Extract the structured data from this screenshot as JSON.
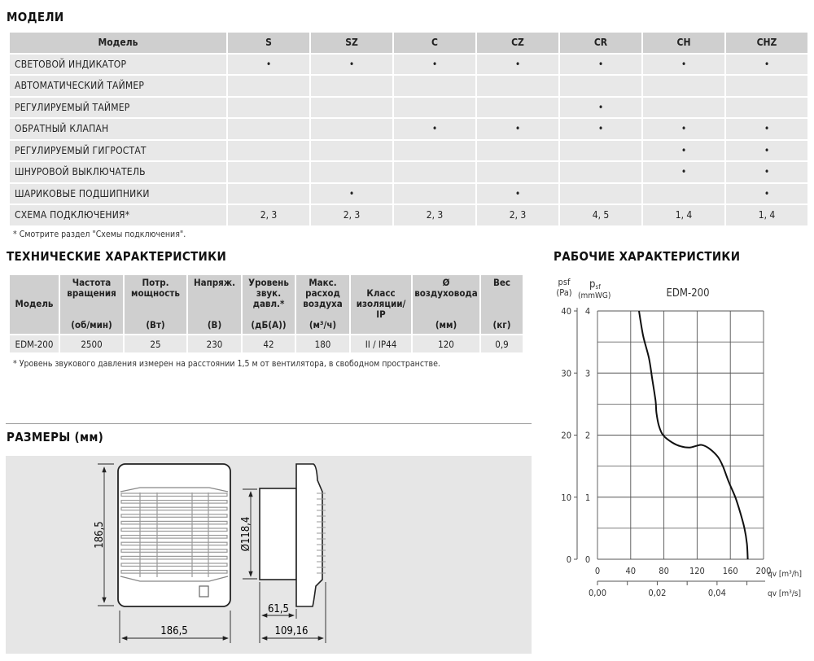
{
  "models": {
    "title": "МОДЕЛИ",
    "header": [
      "Модель",
      "S",
      "SZ",
      "C",
      "CZ",
      "CR",
      "CH",
      "CHZ"
    ],
    "rows": [
      {
        "label": "СВЕТОВОЙ ИНДИКАТОР",
        "cells": [
          "•",
          "•",
          "•",
          "•",
          "•",
          "•",
          "•"
        ]
      },
      {
        "label": "АВТОМАТИЧЕСКИЙ ТАЙМЕР",
        "cells": [
          "",
          "",
          "",
          "",
          "",
          "",
          ""
        ]
      },
      {
        "label": "РЕГУЛИРУЕМЫЙ ТАЙМЕР",
        "cells": [
          "",
          "",
          "",
          "",
          "•",
          "",
          ""
        ]
      },
      {
        "label": "ОБРАТНЫЙ КЛАПАН",
        "cells": [
          "",
          "",
          "•",
          "•",
          "•",
          "•",
          "•"
        ]
      },
      {
        "label": "РЕГУЛИРУЕМЫЙ ГИГРОСТАТ",
        "cells": [
          "",
          "",
          "",
          "",
          "",
          "•",
          "•"
        ]
      },
      {
        "label": "ШНУРОВОЙ ВЫКЛЮЧАТЕЛЬ",
        "cells": [
          "",
          "",
          "",
          "",
          "",
          "•",
          "•"
        ]
      },
      {
        "label": "ШАРИКОВЫЕ ПОДШИПНИКИ",
        "cells": [
          "",
          "•",
          "",
          "•",
          "",
          "",
          "•"
        ]
      },
      {
        "label": "СХЕМА ПОДКЛЮЧЕНИЯ*",
        "cells": [
          "2, 3",
          "2, 3",
          "2, 3",
          "2, 3",
          "4, 5",
          "1, 4",
          "1, 4"
        ]
      }
    ],
    "note": "* Смотрите раздел \"Схемы подключения\"."
  },
  "tech": {
    "title": "ТЕХНИЧЕСКИЕ ХАРАКТЕРИСТИКИ",
    "header": [
      {
        "name": "Модель",
        "unit": ""
      },
      {
        "name": "Частота вращения",
        "unit": "(об/мин)"
      },
      {
        "name": "Потр. мощность",
        "unit": "(Вт)"
      },
      {
        "name": "Напряж.",
        "unit": "(В)"
      },
      {
        "name": "Уровень звук. давл.*",
        "unit": "(дБ(А))"
      },
      {
        "name": "Макс. расход воздуха",
        "unit": "(м³/ч)"
      },
      {
        "name": "Класс изоляции/ IP",
        "unit": ""
      },
      {
        "name": "Ø воздуховода",
        "unit": "(мм)"
      },
      {
        "name": "Вес",
        "unit": "(кг)"
      }
    ],
    "row": [
      "EDM-200",
      "2500",
      "25",
      "230",
      "42",
      "180",
      "II / IP44",
      "120",
      "0,9"
    ],
    "note": "* Уровень звукового давления измерен на расстоянии 1,5 м от вентилятора, в свободном пространстве."
  },
  "dimensions": {
    "title": "РАЗМЕРЫ (мм)",
    "height": "186,5",
    "width": "186,5",
    "duct_diameter": "Ø118,4",
    "duct_depth": "61,5",
    "total_depth": "109,16"
  },
  "chart_data": {
    "type": "line",
    "section_title": "РАБОЧИЕ ХАРАКТЕРИСТИКИ",
    "title": "EDM-200",
    "ylabel": "psf (Pa)",
    "ylabel_main": "p",
    "ylabel_sub": "sf",
    "ylabel_unit": "(Pa)",
    "y2label_unit": "(mmWG)",
    "xlabel": "qv [m³/h]",
    "x2label": "qv [m³/s]",
    "xlim": [
      0,
      200
    ],
    "ylim": [
      0,
      40
    ],
    "xticks": [
      "0",
      "40",
      "80",
      "120",
      "160",
      "200"
    ],
    "yticks": [
      "0",
      "10",
      "20",
      "30",
      "40"
    ],
    "y2ticks": [
      "0",
      "1",
      "2",
      "3",
      "4"
    ],
    "x2ticks": [
      "0,00",
      "0,02",
      "0,04"
    ],
    "grid": true,
    "series": [
      {
        "x": [
          50,
          55,
          62,
          66,
          70,
          71,
          74,
          79,
          90,
          100,
          111,
          120,
          126,
          135,
          145,
          151,
          158,
          166,
          172,
          177,
          180,
          181
        ],
        "y": [
          40,
          36,
          32.4,
          29,
          25.5,
          23.6,
          21.5,
          20,
          18.8,
          18.2,
          18,
          18.3,
          18.4,
          17.8,
          16.5,
          15,
          12.5,
          10,
          7.5,
          5,
          2.5,
          0
        ]
      }
    ]
  }
}
